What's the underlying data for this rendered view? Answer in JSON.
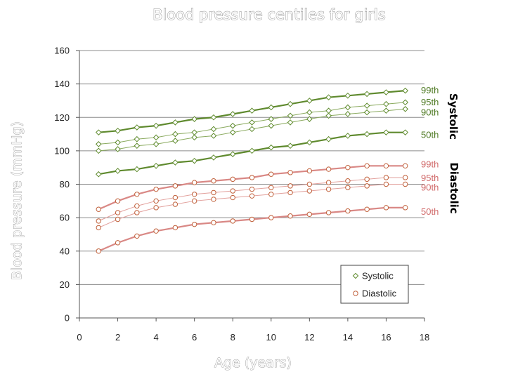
{
  "colors": {
    "systolic_line": "#5f8a2e",
    "systolic_line_light": "#8aaa5e",
    "diastolic_line": "#d98885",
    "diastolic_line_light": "#e2a09c",
    "systolic_marker": "#5e8a2c",
    "diastolic_marker": "#c0603a",
    "systolic_label": "#4f7a24",
    "diastolic_label": "#d16b6b",
    "grid": "#8c8c8c"
  },
  "chart_data": {
    "type": "line",
    "title": "Blood pressure centiles for girls",
    "xlabel": "Age (years)",
    "ylabel": "Blood pressure (mmHg)",
    "xlim": [
      0,
      18
    ],
    "ylim": [
      0,
      160
    ],
    "xticks": [
      0,
      2,
      4,
      6,
      8,
      10,
      12,
      14,
      16,
      18
    ],
    "yticks": [
      0,
      20,
      40,
      60,
      80,
      100,
      120,
      140,
      160
    ],
    "grid": "horizontal",
    "legend_position": "bottom-right",
    "legend": [
      "Systolic",
      "Diastolic"
    ],
    "x": [
      1,
      2,
      3,
      4,
      5,
      6,
      7,
      8,
      9,
      10,
      11,
      12,
      13,
      14,
      15,
      16,
      17
    ],
    "groups": [
      {
        "name": "Systolic",
        "marker": "diamond",
        "series": [
          {
            "name": "99th",
            "bold": true,
            "values": [
              111,
              112,
              114,
              115,
              117,
              119,
              120,
              122,
              124,
              126,
              128,
              130,
              132,
              133,
              134,
              135,
              136
            ]
          },
          {
            "name": "95th",
            "bold": false,
            "values": [
              104,
              105,
              107,
              108,
              110,
              111,
              113,
              115,
              117,
              119,
              121,
              123,
              124,
              126,
              127,
              128,
              129
            ]
          },
          {
            "name": "90th",
            "bold": false,
            "values": [
              100,
              101,
              103,
              104,
              106,
              108,
              109,
              111,
              113,
              115,
              117,
              119,
              121,
              122,
              123,
              124,
              125
            ]
          },
          {
            "name": "50th",
            "bold": true,
            "values": [
              86,
              88,
              89,
              91,
              93,
              94,
              96,
              98,
              100,
              102,
              103,
              105,
              107,
              109,
              110,
              111,
              111
            ]
          }
        ]
      },
      {
        "name": "Diastolic",
        "marker": "circle",
        "series": [
          {
            "name": "99th",
            "bold": true,
            "values": [
              65,
              70,
              74,
              77,
              79,
              81,
              82,
              83,
              84,
              86,
              87,
              88,
              89,
              90,
              91,
              91,
              91
            ]
          },
          {
            "name": "95th",
            "bold": false,
            "values": [
              58,
              63,
              67,
              70,
              72,
              74,
              75,
              76,
              77,
              78,
              79,
              80,
              81,
              82,
              83,
              84,
              84
            ]
          },
          {
            "name": "90th",
            "bold": false,
            "values": [
              54,
              59,
              63,
              66,
              68,
              70,
              71,
              72,
              73,
              74,
              75,
              76,
              77,
              78,
              79,
              80,
              80
            ]
          },
          {
            "name": "50th",
            "bold": true,
            "values": [
              40,
              45,
              49,
              52,
              54,
              56,
              57,
              58,
              59,
              60,
              61,
              62,
              63,
              64,
              65,
              66,
              66
            ]
          }
        ]
      }
    ]
  }
}
